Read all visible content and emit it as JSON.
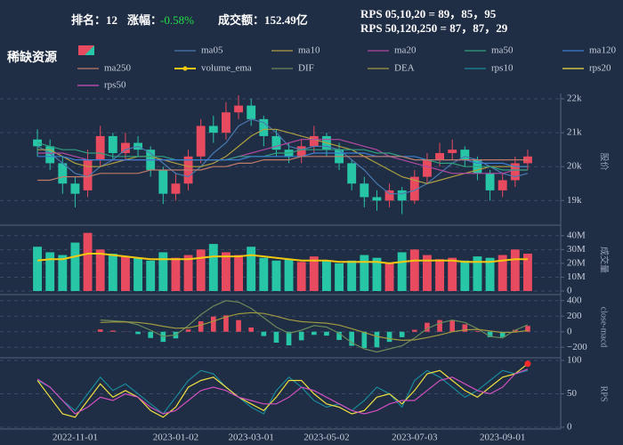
{
  "header": {
    "rank": "排名：12",
    "change_label": "涨幅：",
    "change": "-0.58%",
    "turnover": "成交额：152.49亿",
    "rps_short": "RPS 05,10,20 = 89，85，95",
    "rps_long": "RPS 50,120,250 = 87，87，29"
  },
  "chart_data": [
    {
      "type": "candlestick",
      "title": "稀缺资源",
      "ylabel": "股价",
      "ylim": [
        18300,
        22000
      ],
      "yticks": [
        {
          "value": 19000,
          "label": "19k"
        },
        {
          "value": 20000,
          "label": "20k"
        },
        {
          "value": 21000,
          "label": "21k"
        },
        {
          "value": 22000,
          "label": "22k"
        }
      ],
      "grid": true,
      "up_color": "#e84a5f",
      "down_color": "#26c6a6",
      "open": [
        20800,
        20600,
        20100,
        19500,
        19300,
        20200,
        20900,
        20400,
        20700,
        20500,
        19900,
        19200,
        19500,
        20300,
        21200,
        21000,
        21600,
        21800,
        21400,
        20900,
        20500,
        20300,
        20600,
        20900,
        20500,
        20100,
        19500,
        19100,
        19000,
        19300,
        19000,
        19700,
        20200,
        20400,
        20500,
        20200,
        19800,
        19300,
        19600,
        20100
      ],
      "high": [
        21100,
        20800,
        20300,
        19700,
        20500,
        21200,
        21000,
        21000,
        20900,
        20600,
        20000,
        19800,
        20500,
        21400,
        21500,
        21900,
        22100,
        22000,
        21500,
        21100,
        20700,
        20800,
        21200,
        21000,
        20700,
        20200,
        19700,
        19300,
        19500,
        19400,
        19900,
        20400,
        20700,
        20800,
        20600,
        20300,
        19900,
        19800,
        20300,
        20500
      ],
      "low": [
        20300,
        19900,
        19200,
        18800,
        19100,
        20000,
        20200,
        20200,
        20300,
        19700,
        18900,
        19000,
        19300,
        20100,
        20700,
        20800,
        21400,
        21200,
        20600,
        20300,
        20100,
        20100,
        20400,
        20300,
        19900,
        19300,
        18800,
        18700,
        18800,
        18600,
        18900,
        19500,
        20000,
        20200,
        20000,
        19600,
        19000,
        19100,
        19400,
        19900
      ],
      "close": [
        20600,
        20100,
        19500,
        19200,
        20200,
        20900,
        20400,
        20700,
        20500,
        19900,
        19200,
        19500,
        20300,
        21200,
        21000,
        21600,
        21800,
        21400,
        20900,
        20500,
        20300,
        20600,
        20900,
        20500,
        20100,
        19500,
        19100,
        19000,
        19300,
        19000,
        19700,
        20200,
        20400,
        20500,
        20200,
        19800,
        19300,
        19600,
        20100,
        20300
      ],
      "series": [
        {
          "name": "ma05",
          "color": "#4a7ab0",
          "values": [
            20600,
            20400,
            20100,
            19800,
            19700,
            20000,
            20200,
            20500,
            20600,
            20400,
            20100,
            19800,
            19700,
            20000,
            20400,
            20700,
            21200,
            21400,
            21300,
            21000,
            20600,
            20500,
            20600,
            20600,
            20500,
            20200,
            19900,
            19500,
            19200,
            19200,
            19300,
            19500,
            19800,
            20100,
            20300,
            20200,
            20000,
            19800,
            19700,
            19800
          ]
        },
        {
          "name": "ma10",
          "color": "#b0a040",
          "values": [
            20500,
            20500,
            20300,
            20100,
            20000,
            20000,
            20100,
            20200,
            20300,
            20300,
            20200,
            20100,
            20000,
            20000,
            20100,
            20300,
            20600,
            20900,
            21100,
            21100,
            21000,
            20900,
            20800,
            20700,
            20600,
            20500,
            20300,
            20100,
            19900,
            19700,
            19600,
            19500,
            19600,
            19700,
            19800,
            19900,
            20000,
            20000,
            20000,
            20000
          ]
        },
        {
          "name": "ma20",
          "color": "#b04aa0",
          "values": [
            20400,
            20400,
            20400,
            20300,
            20200,
            20200,
            20200,
            20200,
            20200,
            20200,
            20200,
            20200,
            20200,
            20200,
            20200,
            20200,
            20300,
            20400,
            20500,
            20600,
            20700,
            20800,
            20800,
            20800,
            20800,
            20700,
            20600,
            20500,
            20300,
            20200,
            20100,
            20000,
            19900,
            19800,
            19800,
            19800,
            19800,
            19800,
            19900,
            19900
          ]
        },
        {
          "name": "ma50",
          "color": "#30a080",
          "values": [
            20700,
            20600,
            20500,
            20500,
            20400,
            20400,
            20300,
            20300,
            20300,
            20300,
            20300,
            20200,
            20200,
            20200,
            20200,
            20200,
            20300,
            20300,
            20300,
            20400,
            20400,
            20500,
            20500,
            20500,
            20500,
            20500,
            20500,
            20400,
            20400,
            20300,
            20200,
            20200,
            20100,
            20100,
            20000,
            20000,
            20000,
            19900,
            19900,
            19900
          ]
        },
        {
          "name": "ma120",
          "color": "#3a7fd0",
          "values": [
            20300,
            20300,
            20300,
            20200,
            20200,
            20200,
            20200,
            20200,
            20200,
            20200,
            20200,
            20200,
            20200,
            20200,
            20200,
            20200,
            20200,
            20300,
            20300,
            20300,
            20300,
            20300,
            20400,
            20400,
            20400,
            20400,
            20400,
            20300,
            20300,
            20300,
            20300,
            20200,
            20200,
            20200,
            20200,
            20100,
            20100,
            20100,
            20000,
            20000
          ]
        },
        {
          "name": "ma250",
          "color": "#c07a6a",
          "values": [
            19600,
            19600,
            19700,
            19700,
            19700,
            19800,
            19800,
            19800,
            19800,
            19900,
            19900,
            19900,
            19900,
            19900,
            20000,
            20000,
            20100,
            20100,
            20200,
            20200,
            20200,
            20300,
            20300,
            20300,
            20300,
            20300,
            20300,
            20300,
            20300,
            20300,
            20200,
            20200,
            20200,
            20200,
            20200,
            20200,
            20200,
            20200,
            20200,
            20200
          ]
        }
      ]
    },
    {
      "type": "volume",
      "ylabel": "成交量",
      "ylim": [
        0,
        45000000
      ],
      "yticks": [
        0,
        {
          "value": 10000000,
          "label": "10M"
        },
        {
          "value": 20000000,
          "label": "20M"
        },
        {
          "value": 30000000,
          "label": "30M"
        },
        {
          "value": 40000000,
          "label": "40M"
        }
      ],
      "grid": true,
      "values": [
        32000000,
        28000000,
        26000000,
        35000000,
        42000000,
        30000000,
        27000000,
        25000000,
        24000000,
        22000000,
        28000000,
        24000000,
        26000000,
        30000000,
        34000000,
        28000000,
        26000000,
        32000000,
        24000000,
        22000000,
        23000000,
        21000000,
        25000000,
        22000000,
        20000000,
        22000000,
        26000000,
        24000000,
        20000000,
        28000000,
        30000000,
        26000000,
        23000000,
        24000000,
        22000000,
        25000000,
        24000000,
        26000000,
        30000000,
        27000000
      ],
      "series": [
        {
          "name": "volume_ema",
          "color": "#f2c811",
          "values": [
            22000000,
            23000000,
            23000000,
            25000000,
            27000000,
            27000000,
            26000000,
            25000000,
            24000000,
            23000000,
            23000000,
            23000000,
            23000000,
            24000000,
            25000000,
            25000000,
            25000000,
            26000000,
            25000000,
            24000000,
            23000000,
            22000000,
            22000000,
            22000000,
            21000000,
            21000000,
            21000000,
            21000000,
            20000000,
            21000000,
            22000000,
            22000000,
            22000000,
            22000000,
            21000000,
            21000000,
            21000000,
            22000000,
            23000000,
            23000000
          ]
        }
      ]
    },
    {
      "type": "macd",
      "ylabel": "close-macd",
      "ylim": [
        -300,
        420
      ],
      "yticks": [
        {
          "value": -200,
          "label": "−200"
        },
        0,
        200,
        400
      ],
      "grid": true,
      "values": [
        null,
        null,
        null,
        null,
        null,
        30,
        15,
        2,
        -30,
        -80,
        -130,
        -85,
        30,
        135,
        195,
        210,
        150,
        55,
        -55,
        -140,
        -175,
        -110,
        -40,
        -50,
        -105,
        -180,
        -210,
        -200,
        -130,
        -70,
        25,
        115,
        150,
        150,
        95,
        10,
        -70,
        -70,
        25,
        75
      ],
      "series": [
        {
          "name": "DIF",
          "color": "#6a8a5a",
          "values": [
            null,
            null,
            null,
            null,
            null,
            150,
            140,
            130,
            90,
            20,
            -60,
            -40,
            80,
            220,
            330,
            400,
            380,
            300,
            180,
            60,
            -20,
            20,
            80,
            60,
            -20,
            -140,
            -220,
            -260,
            -220,
            -180,
            -80,
            40,
            110,
            150,
            120,
            40,
            -60,
            -80,
            20,
            90
          ]
        },
        {
          "name": "DEA",
          "color": "#a09a40",
          "values": [
            null,
            null,
            null,
            null,
            null,
            120,
            125,
            128,
            120,
            100,
            70,
            45,
            50,
            85,
            135,
            190,
            230,
            245,
            235,
            200,
            155,
            130,
            120,
            110,
            85,
            40,
            -10,
            -60,
            -90,
            -110,
            -105,
            -75,
            -40,
            0,
            25,
            30,
            10,
            -10,
            -5,
            15
          ]
        }
      ]
    },
    {
      "type": "line",
      "ylabel": "RPS",
      "ylim": [
        0,
        100
      ],
      "yticks": [
        0,
        50,
        100
      ],
      "grid": true,
      "categories": [
        null,
        null,
        null,
        "2022-11-01",
        null,
        null,
        null,
        null,
        null,
        null,
        null,
        "2023-01-02",
        null,
        null,
        null,
        null,
        null,
        "2023-03-01",
        null,
        null,
        null,
        null,
        null,
        "2023-05-02",
        null,
        null,
        null,
        null,
        null,
        null,
        "2023-07-03",
        null,
        null,
        null,
        null,
        null,
        null,
        "2023-09-01",
        null,
        null
      ],
      "series": [
        {
          "name": "rps10",
          "color": "#1a8a9a",
          "values": [
            70,
            60,
            40,
            25,
            50,
            75,
            55,
            65,
            50,
            35,
            20,
            45,
            70,
            85,
            80,
            60,
            45,
            30,
            20,
            55,
            75,
            60,
            40,
            30,
            35,
            25,
            40,
            60,
            50,
            30,
            70,
            85,
            75,
            60,
            45,
            55,
            70,
            85,
            80,
            85
          ]
        },
        {
          "name": "rps20",
          "color": "#f0e040",
          "values": [
            70,
            45,
            20,
            15,
            40,
            65,
            45,
            55,
            45,
            25,
            15,
            30,
            60,
            70,
            75,
            60,
            45,
            35,
            25,
            45,
            70,
            70,
            50,
            35,
            30,
            20,
            25,
            45,
            50,
            35,
            55,
            80,
            85,
            70,
            55,
            45,
            60,
            75,
            80,
            95
          ]
        },
        {
          "name": "rps50",
          "color": "#d050c0",
          "values": [
            72,
            60,
            40,
            20,
            30,
            45,
            40,
            50,
            45,
            30,
            20,
            25,
            40,
            55,
            60,
            55,
            45,
            40,
            35,
            35,
            45,
            60,
            55,
            45,
            35,
            25,
            20,
            25,
            35,
            40,
            40,
            55,
            70,
            75,
            65,
            55,
            50,
            60,
            80,
            87
          ]
        }
      ]
    }
  ]
}
